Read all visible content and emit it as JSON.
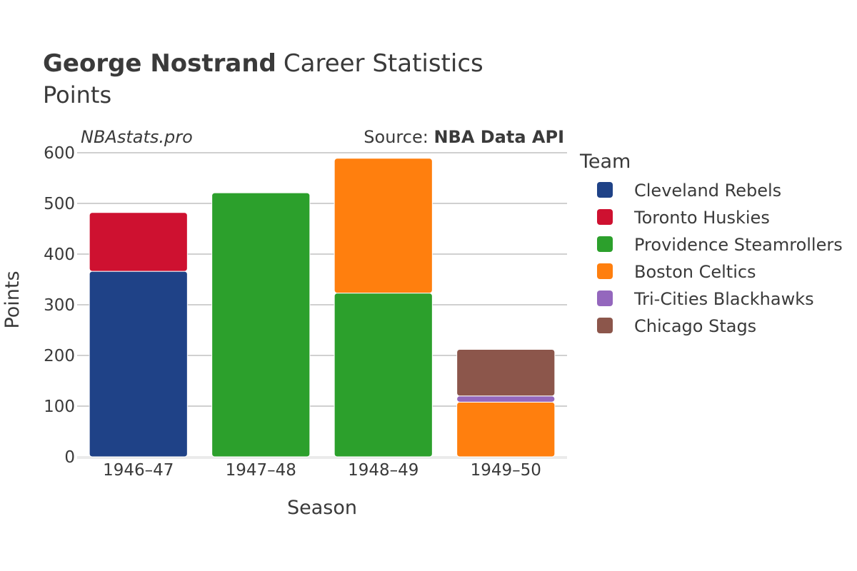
{
  "header": {
    "player_name": "George Nostrand",
    "title_rest": "Career Statistics",
    "subtitle": "Points",
    "watermark": "NBAstats.pro",
    "source_prefix": "Source: ",
    "source_name": "NBA Data API"
  },
  "chart_data": {
    "type": "bar",
    "stacked": true,
    "title": "George Nostrand Career Statistics",
    "subtitle": "Points",
    "xlabel": "Season",
    "ylabel": "Points",
    "ylim": [
      0,
      600
    ],
    "yticks": [
      0,
      100,
      200,
      300,
      400,
      500,
      600
    ],
    "grid": true,
    "legend_title": "Team",
    "legend_position": "right",
    "categories": [
      "1946–47",
      "1947–48",
      "1948–49",
      "1949–50"
    ],
    "series": [
      {
        "name": "Cleveland Rebels",
        "color": "#1f4287",
        "values": [
          366,
          0,
          0,
          0
        ]
      },
      {
        "name": "Toronto Huskies",
        "color": "#ce1130",
        "values": [
          116,
          0,
          0,
          0
        ]
      },
      {
        "name": "Providence Steamrollers",
        "color": "#2ca02c",
        "values": [
          0,
          521,
          323,
          0
        ]
      },
      {
        "name": "Boston Celtics",
        "color": "#ff7f0e",
        "values": [
          0,
          0,
          266,
          108
        ]
      },
      {
        "name": "Tri-Cities Blackhawks",
        "color": "#9467bd",
        "values": [
          0,
          0,
          0,
          12
        ]
      },
      {
        "name": "Chicago Stags",
        "color": "#8c564b",
        "values": [
          0,
          0,
          0,
          92
        ]
      }
    ]
  }
}
